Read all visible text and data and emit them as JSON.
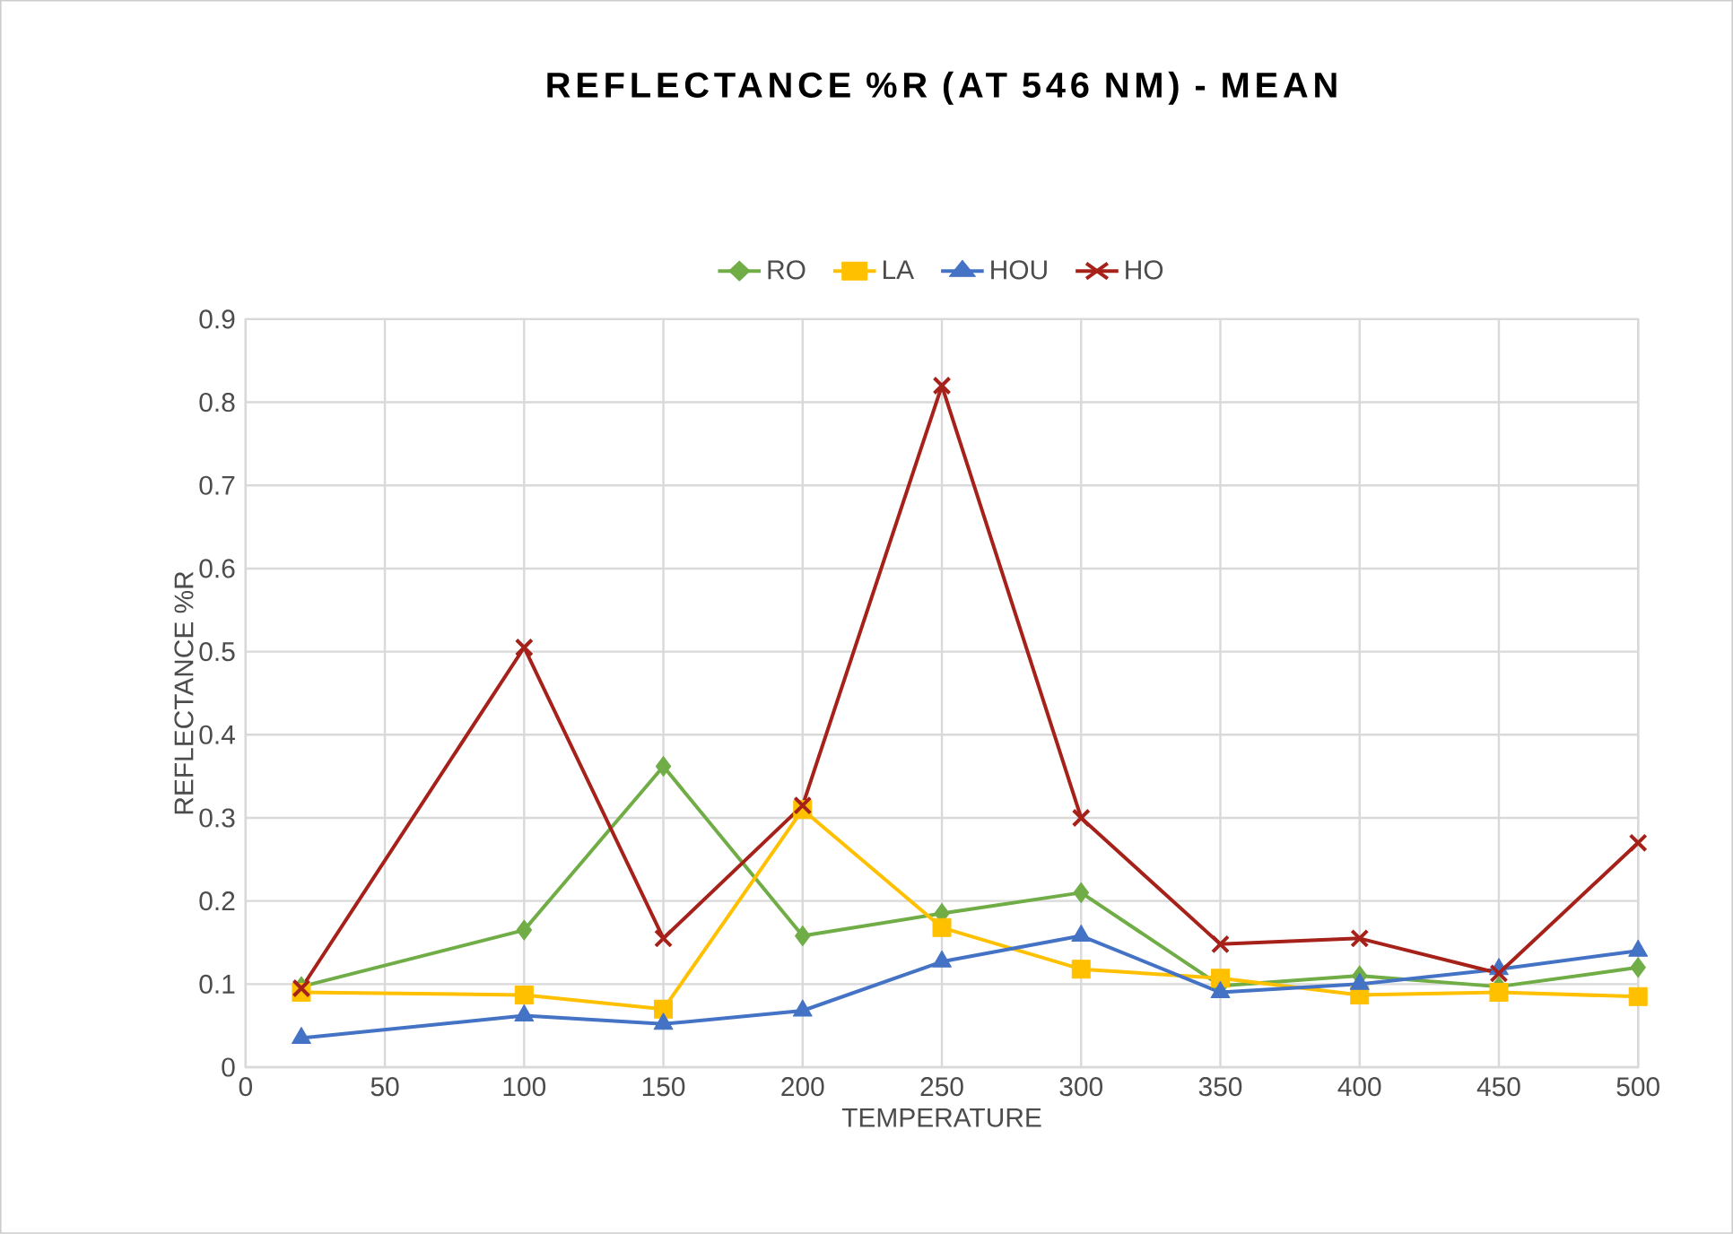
{
  "chart_data": {
    "type": "line",
    "title": "REFLECTANCE %R (AT 546 NM) - MEAN",
    "xlabel": "TEMPERATURE",
    "ylabel": "REFLECTANCE %R",
    "x": [
      20,
      100,
      150,
      200,
      250,
      300,
      350,
      400,
      450,
      500
    ],
    "series": [
      {
        "name": "RO",
        "color": "#70ad47",
        "marker": "diamond",
        "values": [
          0.097,
          0.165,
          0.362,
          0.158,
          0.185,
          0.21,
          0.098,
          0.11,
          0.097,
          0.12
        ]
      },
      {
        "name": "LA",
        "color": "#ffc000",
        "marker": "square",
        "values": [
          0.09,
          0.087,
          0.07,
          0.31,
          0.168,
          0.118,
          0.107,
          0.087,
          0.09,
          0.085
        ]
      },
      {
        "name": "HOU",
        "color": "#4472c4",
        "marker": "triangle",
        "values": [
          0.035,
          0.062,
          0.052,
          0.068,
          0.127,
          0.158,
          0.09,
          0.1,
          0.118,
          0.14
        ]
      },
      {
        "name": "HO",
        "color": "#a5211a",
        "marker": "cross",
        "values": [
          0.095,
          0.505,
          0.155,
          0.315,
          0.82,
          0.3,
          0.148,
          0.155,
          0.113,
          0.27
        ]
      }
    ],
    "xlim": [
      0,
      500
    ],
    "xticks": [
      0,
      50,
      100,
      150,
      200,
      250,
      300,
      350,
      400,
      450,
      500
    ],
    "ylim": [
      0,
      0.9
    ],
    "yticks": [
      0,
      0.1,
      0.2,
      0.3,
      0.4,
      0.5,
      0.6,
      0.7,
      0.8,
      0.9
    ],
    "grid": true,
    "legend": "top",
    "line_style": "solid"
  }
}
